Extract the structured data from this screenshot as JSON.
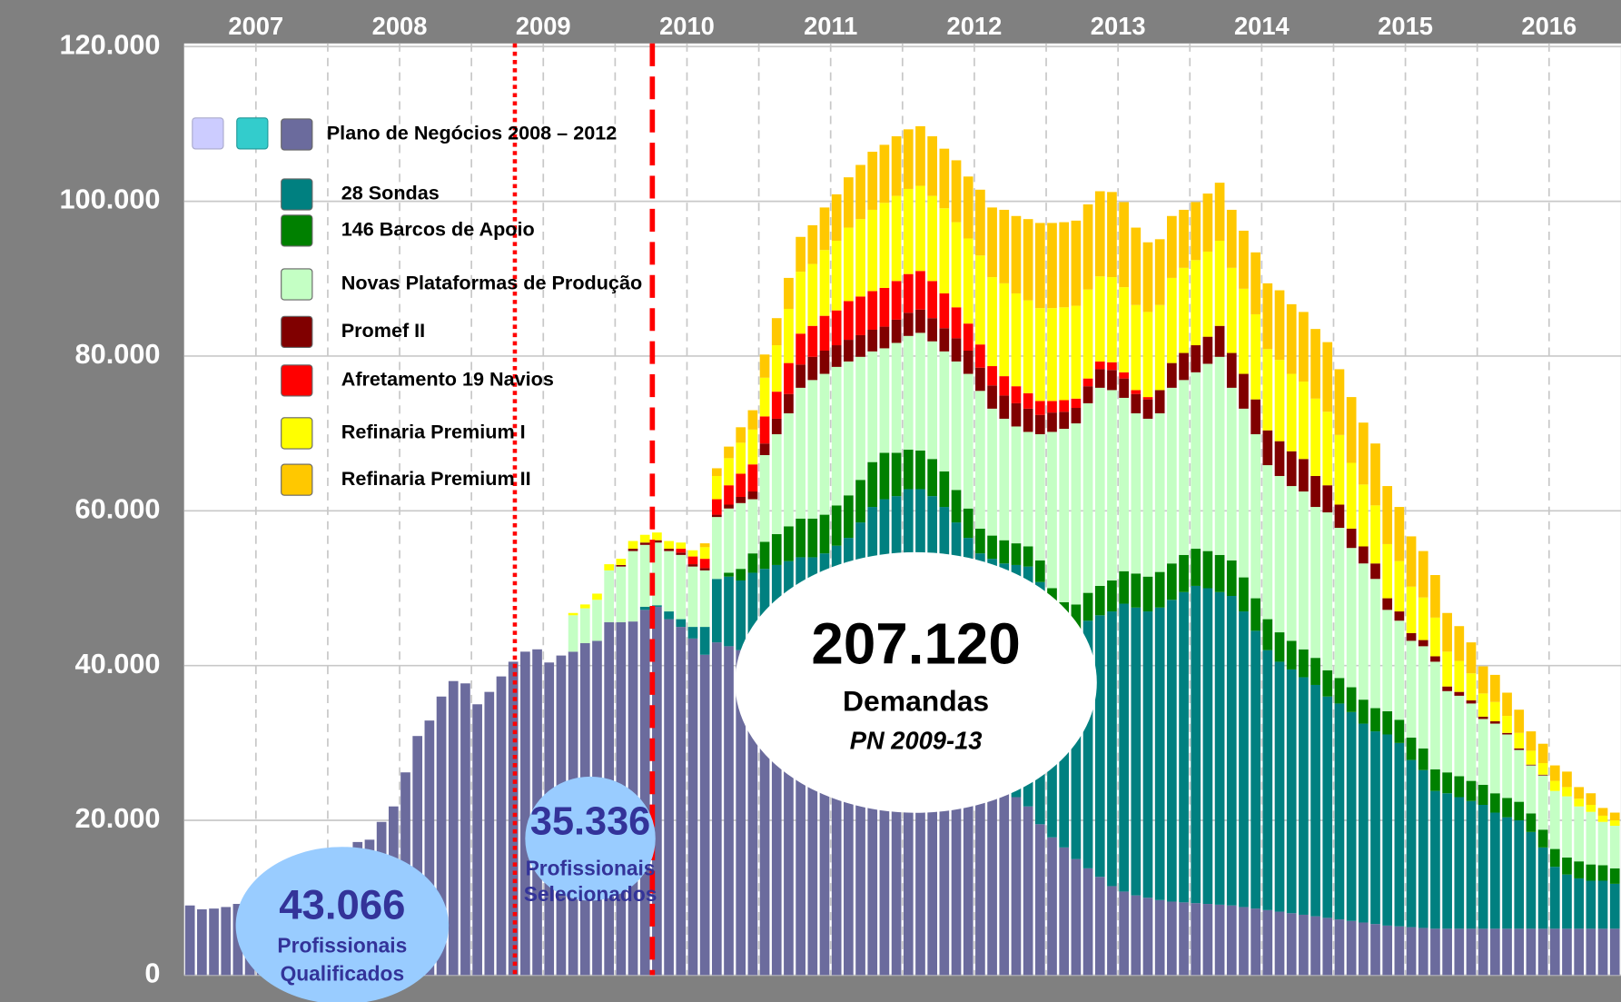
{
  "chart_data": {
    "type": "bar",
    "stacked": true,
    "grid": true,
    "years": [
      "2007",
      "2008",
      "2009",
      "2010",
      "2011",
      "2012",
      "2013",
      "2014",
      "2015",
      "2016"
    ],
    "ylim": [
      0,
      120000
    ],
    "yticks": [
      0,
      {
        "value": 20000,
        "label": "20.000"
      },
      {
        "value": 40000,
        "label": "40.000"
      },
      {
        "value": 60000,
        "label": "60.000"
      },
      {
        "value": 80000,
        "label": "80.000"
      },
      {
        "value": 100000,
        "label": "100.000"
      },
      {
        "value": 120000,
        "label": "120.000"
      }
    ],
    "series": [
      {
        "name": "Plano de Negócios 2008 – 2012",
        "color": "#6b6b9d",
        "values": [
          9000,
          8500,
          8600,
          8800,
          9200,
          9800,
          10800,
          12000,
          13000,
          13800,
          14500,
          15200,
          16000,
          16500,
          17200,
          17500,
          19800,
          21800,
          26200,
          30900,
          32900,
          36000,
          38000,
          37700,
          35000,
          36600,
          38600,
          40500,
          41800,
          42100,
          40400,
          41300,
          41800,
          42900,
          43200,
          45600,
          45600,
          45700,
          47200,
          47600,
          46000,
          45000,
          43500,
          41400,
          43000,
          42500,
          42000,
          41000,
          40000,
          39000,
          38000,
          37000,
          36000,
          35000,
          34000,
          33000,
          32000,
          31000,
          30000,
          29500,
          29000,
          28500,
          28000,
          27500,
          27000,
          26500,
          26000,
          25000,
          24000,
          23000,
          21800,
          19500,
          17800,
          16500,
          15000,
          13800,
          12700,
          11500,
          10800,
          10300,
          10000,
          9700,
          9500,
          9400,
          9300,
          9200,
          9100,
          9000,
          8800,
          8600,
          8400,
          8200,
          8000,
          7800,
          7600,
          7400,
          7200,
          7000,
          6800,
          6600,
          6400,
          6300,
          6200,
          6100,
          6000,
          6000,
          6000,
          6000,
          6000,
          6000,
          6000,
          6000,
          6000,
          6000,
          6000,
          6000,
          6000,
          6000,
          6000,
          6000
        ]
      },
      {
        "name": "28 Sondas",
        "color": "#008080",
        "values": [
          0,
          0,
          0,
          0,
          0,
          0,
          0,
          0,
          0,
          0,
          0,
          0,
          0,
          0,
          0,
          0,
          0,
          0,
          0,
          0,
          0,
          0,
          0,
          0,
          0,
          0,
          0,
          0,
          0,
          0,
          0,
          0,
          0,
          0,
          0,
          0,
          0,
          0,
          400,
          200,
          1000,
          1000,
          1500,
          3600,
          8200,
          9000,
          9000,
          11000,
          12500,
          14000,
          15500,
          17000,
          18000,
          19500,
          21500,
          23500,
          26500,
          29500,
          31500,
          32400,
          33800,
          34300,
          33900,
          33000,
          31500,
          30000,
          28500,
          28800,
          29200,
          30000,
          31000,
          31300,
          29200,
          28500,
          29500,
          32000,
          33800,
          35500,
          37200,
          37200,
          37000,
          37800,
          39000,
          40100,
          41000,
          40800,
          40400,
          40000,
          38200,
          35900,
          33600,
          32300,
          31500,
          30700,
          29900,
          28600,
          27900,
          27000,
          25700,
          24900,
          24700,
          23700,
          21600,
          20400,
          17800,
          17500,
          17000,
          16500,
          16000,
          15000,
          14400,
          14000,
          12500,
          10500,
          8000,
          7000,
          6500,
          6200,
          6200,
          5800
        ]
      },
      {
        "name": "146 Barcos de Apoio",
        "color": "#008000",
        "values": [
          0,
          0,
          0,
          0,
          0,
          0,
          0,
          0,
          0,
          0,
          0,
          0,
          0,
          0,
          0,
          0,
          0,
          0,
          0,
          0,
          0,
          0,
          0,
          0,
          0,
          0,
          0,
          0,
          0,
          0,
          0,
          0,
          0,
          0,
          0,
          0,
          0,
          0,
          0,
          0,
          0,
          0,
          0,
          0,
          0,
          500,
          1500,
          2500,
          3500,
          4000,
          4500,
          5000,
          5000,
          5000,
          5200,
          5500,
          5500,
          5800,
          6000,
          5600,
          5100,
          5000,
          4800,
          4600,
          4200,
          3800,
          3200,
          3000,
          3000,
          2800,
          2600,
          2800,
          3000,
          3200,
          3400,
          3600,
          3800,
          4000,
          4200,
          4400,
          4500,
          4600,
          4700,
          4800,
          4800,
          4800,
          4800,
          4600,
          4400,
          4200,
          4000,
          3800,
          3700,
          3600,
          3500,
          3400,
          3300,
          3200,
          3100,
          3000,
          3000,
          3000,
          2900,
          2800,
          2800,
          2700,
          2700,
          2600,
          2600,
          2500,
          2500,
          2400,
          2400,
          2300,
          2300,
          2200,
          2200,
          2100,
          2000,
          2000
        ]
      },
      {
        "name": "Novas Plataformas de Produção",
        "color": "#c4ffc4",
        "values": [
          0,
          0,
          0,
          0,
          0,
          0,
          0,
          0,
          0,
          0,
          0,
          0,
          0,
          0,
          0,
          0,
          0,
          0,
          0,
          0,
          0,
          0,
          0,
          0,
          0,
          0,
          0,
          0,
          0,
          0,
          0,
          0,
          4700,
          4500,
          5300,
          6700,
          7200,
          9100,
          8000,
          8100,
          7800,
          8300,
          7800,
          7300,
          8000,
          8300,
          8500,
          7000,
          11200,
          12900,
          14600,
          16900,
          17900,
          18200,
          17900,
          17300,
          15900,
          14300,
          13500,
          14200,
          14700,
          15200,
          15200,
          15500,
          16600,
          17400,
          17800,
          16400,
          15700,
          15100,
          14800,
          16300,
          20200,
          22400,
          23400,
          24500,
          25600,
          24600,
          22400,
          20700,
          20400,
          20500,
          22700,
          22600,
          22800,
          24200,
          25600,
          22300,
          21800,
          21200,
          19900,
          20200,
          20000,
          20400,
          19500,
          20400,
          19400,
          18000,
          17600,
          16700,
          13100,
          12800,
          12500,
          13200,
          13900,
          10500,
          10400,
          10000,
          8500,
          9000,
          8200,
          6700,
          6200,
          7000,
          7500,
          7900,
          7100,
          6800,
          5600,
          5500
        ]
      },
      {
        "name": "Promef II",
        "color": "#800000",
        "values": [
          0,
          0,
          0,
          0,
          0,
          0,
          0,
          0,
          0,
          0,
          0,
          0,
          0,
          0,
          0,
          0,
          0,
          0,
          0,
          0,
          0,
          0,
          0,
          0,
          0,
          0,
          0,
          0,
          0,
          0,
          0,
          0,
          0,
          0,
          0,
          0,
          200,
          300,
          300,
          300,
          300,
          300,
          300,
          300,
          300,
          500,
          800,
          1000,
          1500,
          2000,
          2500,
          3000,
          3000,
          3000,
          2800,
          2800,
          2800,
          2800,
          2800,
          3000,
          3000,
          3000,
          3000,
          3000,
          3000,
          3000,
          3000,
          3000,
          3000,
          3000,
          3000,
          2500,
          2500,
          2200,
          2000,
          2200,
          2400,
          2600,
          2500,
          2500,
          2500,
          3000,
          3200,
          3500,
          3500,
          3500,
          4000,
          4500,
          4500,
          4500,
          4500,
          4500,
          4500,
          4200,
          4000,
          3500,
          3000,
          2500,
          2200,
          2000,
          1500,
          1200,
          1000,
          800,
          700,
          600,
          500,
          400,
          300,
          300,
          200,
          200,
          100,
          100,
          0,
          0,
          0,
          0,
          0,
          0
        ]
      },
      {
        "name": "Afretamento 19 Navios",
        "color": "#ff0000",
        "values": [
          0,
          0,
          0,
          0,
          0,
          0,
          0,
          0,
          0,
          0,
          0,
          0,
          0,
          0,
          0,
          0,
          0,
          0,
          0,
          0,
          0,
          0,
          0,
          0,
          0,
          0,
          0,
          0,
          0,
          0,
          0,
          0,
          0,
          0,
          0,
          0,
          0,
          0,
          0,
          0,
          0,
          500,
          1000,
          1200,
          2000,
          2500,
          3000,
          3500,
          3500,
          3500,
          4000,
          4000,
          4000,
          4500,
          4500,
          5000,
          5000,
          5000,
          5000,
          5000,
          5000,
          5000,
          4800,
          4500,
          4000,
          3500,
          3000,
          2500,
          2500,
          2200,
          2000,
          1800,
          1500,
          1500,
          1200,
          1000,
          1000,
          1000,
          800,
          500,
          300,
          0,
          0,
          0,
          0,
          0,
          0,
          0,
          0,
          0,
          0,
          0,
          0,
          0,
          0,
          0,
          0,
          0,
          0,
          0,
          0,
          0,
          0,
          0,
          0,
          0,
          0,
          0,
          0,
          0,
          0,
          0,
          0,
          0,
          0,
          0,
          0,
          0,
          0,
          0
        ]
      },
      {
        "name": "Refinaria Premium I",
        "color": "#ffff00",
        "values": [
          0,
          0,
          0,
          0,
          0,
          0,
          0,
          0,
          0,
          0,
          0,
          0,
          0,
          0,
          0,
          0,
          0,
          0,
          0,
          0,
          0,
          0,
          0,
          0,
          0,
          0,
          0,
          0,
          0,
          0,
          0,
          0,
          300,
          500,
          800,
          800,
          800,
          1000,
          1000,
          1000,
          1000,
          800,
          800,
          1500,
          3000,
          3500,
          4000,
          4500,
          5000,
          6000,
          7000,
          8000,
          8000,
          8500,
          9000,
          9500,
          10000,
          10500,
          11000,
          11000,
          11000,
          11000,
          11000,
          11000,
          11000,
          11000,
          11500,
          11500,
          12000,
          12000,
          12000,
          12000,
          12000,
          12000,
          12000,
          11500,
          11000,
          11000,
          11000,
          11000,
          11000,
          11000,
          11000,
          11000,
          11000,
          11000,
          11000,
          11000,
          11000,
          11000,
          10500,
          10500,
          10000,
          10000,
          10000,
          9500,
          9000,
          8500,
          8000,
          7500,
          7000,
          6500,
          6000,
          5500,
          5000,
          4500,
          4000,
          3500,
          3000,
          2500,
          2200,
          2000,
          1800,
          1500,
          1300,
          1200,
          1000,
          900,
          800,
          700
        ]
      },
      {
        "name": "Refinaria Premium II",
        "color": "#ffc800",
        "values": [
          0,
          0,
          0,
          0,
          0,
          0,
          0,
          0,
          0,
          0,
          0,
          0,
          0,
          0,
          0,
          0,
          0,
          0,
          0,
          0,
          0,
          0,
          0,
          0,
          0,
          0,
          0,
          0,
          0,
          0,
          0,
          0,
          0,
          0,
          0,
          0,
          0,
          0,
          0,
          0,
          0,
          0,
          0,
          500,
          1000,
          1500,
          2000,
          2500,
          3000,
          3500,
          4000,
          4500,
          5000,
          5500,
          6000,
          6500,
          7000,
          7500,
          7500,
          7700,
          7700,
          7700,
          7700,
          7700,
          8000,
          8000,
          8500,
          9000,
          9500,
          10000,
          10500,
          11000,
          11000,
          11000,
          11000,
          11000,
          11000,
          11000,
          11000,
          10000,
          9000,
          8500,
          8000,
          7500,
          7500,
          7500,
          7500,
          7500,
          7500,
          8000,
          8500,
          9000,
          9000,
          9000,
          9000,
          9000,
          8500,
          8500,
          8000,
          8000,
          7500,
          7000,
          6500,
          6000,
          5500,
          5000,
          4500,
          4000,
          3500,
          3500,
          3000,
          3000,
          2500,
          2500,
          2000,
          2000,
          1500,
          1500,
          1000,
          1000
        ]
      }
    ],
    "annotations": [
      {
        "title": "207.120",
        "lines": [
          "Demandas",
          "PN 2009-13"
        ]
      },
      {
        "title": "35.336",
        "lines": [
          "Profissionais",
          "Selecionados"
        ]
      },
      {
        "title": "43.066",
        "lines": [
          "Profissionais",
          "Qualificados"
        ]
      }
    ]
  }
}
